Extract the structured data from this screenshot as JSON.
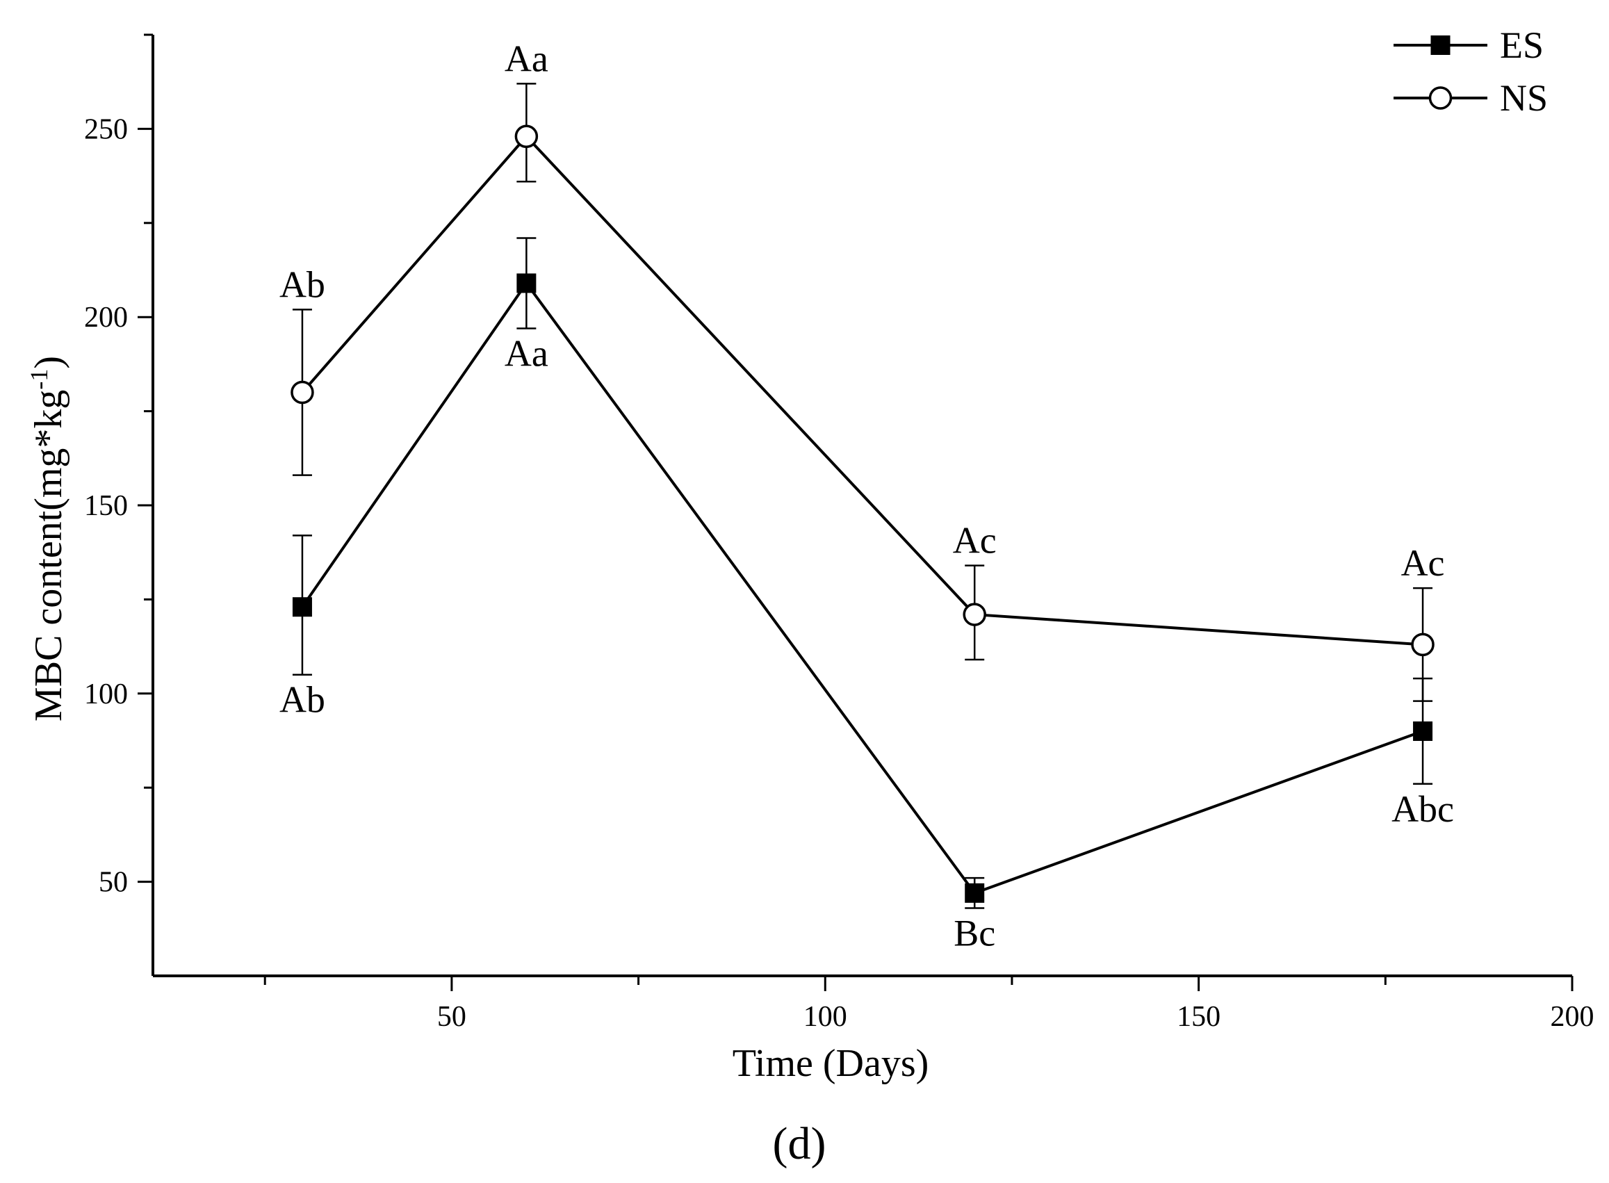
{
  "chart_data": {
    "type": "line",
    "title": "",
    "xlabel": "Time (Days)",
    "ylabel_main": "MBC content(mg*kg",
    "ylabel_sup": "-1",
    "ylabel_close": ")",
    "xlim": [
      10,
      200
    ],
    "ylim": [
      25,
      275
    ],
    "xticks": [
      50,
      100,
      150,
      200
    ],
    "xminor": [
      25,
      75,
      125,
      175
    ],
    "yticks": [
      50,
      100,
      150,
      200,
      250
    ],
    "yminor": [
      75,
      125,
      175,
      225,
      275
    ],
    "grid": false,
    "legend_position": "top-right",
    "panel_label": "(d)",
    "series": [
      {
        "name": "ES",
        "marker": "filled-square",
        "x": [
          30,
          60,
          120,
          180
        ],
        "y": [
          123,
          209,
          47,
          90
        ],
        "err_low": [
          105,
          197,
          43,
          76
        ],
        "err_high": [
          142,
          221,
          51,
          104
        ],
        "labels": [
          "Ab",
          "Aa",
          "Bc",
          "Abc"
        ],
        "label_side": [
          "below",
          "below",
          "below",
          "below"
        ]
      },
      {
        "name": "NS",
        "marker": "open-circle",
        "x": [
          30,
          60,
          120,
          180
        ],
        "y": [
          180,
          248,
          121,
          113
        ],
        "err_low": [
          158,
          236,
          109,
          98
        ],
        "err_high": [
          202,
          262,
          134,
          128
        ],
        "labels": [
          "Ab",
          "Aa",
          "Ac",
          "Ac"
        ],
        "label_side": [
          "above",
          "above",
          "above",
          "above"
        ]
      }
    ]
  },
  "colors": {
    "line": "#000000",
    "background": "#ffffff"
  }
}
